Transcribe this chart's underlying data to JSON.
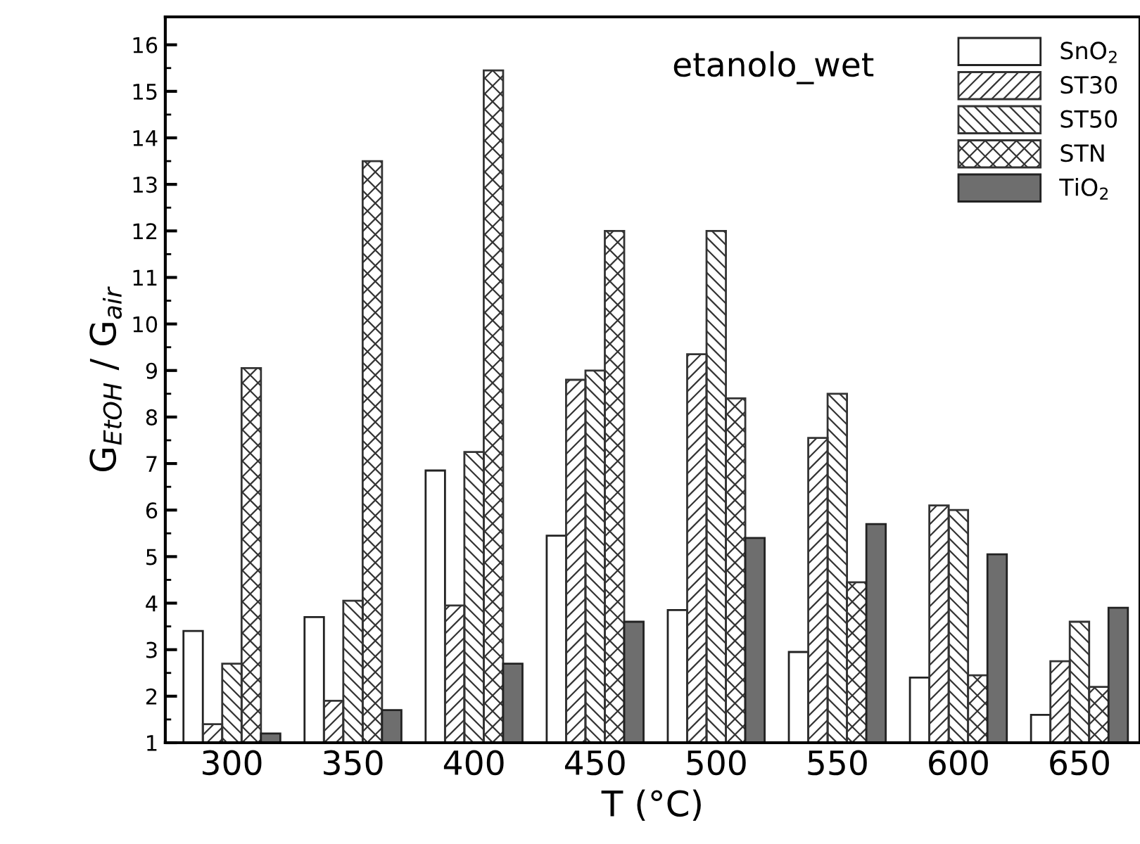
{
  "chart_data": {
    "type": "bar",
    "xlabel": "T (°C)",
    "ylabel": "G$_{EtOH}$ / G$_{air}$",
    "annotations": [
      "etanolo_wet"
    ],
    "categories": [
      "300",
      "350",
      "400",
      "450",
      "500",
      "550",
      "600",
      "650"
    ],
    "series": [
      {
        "name": "SnO$_{2}$",
        "color": "#ffffff",
        "values": [
          3.4,
          3.7,
          6.85,
          5.45,
          3.85,
          2.95,
          2.4,
          1.6
        ]
      },
      {
        "name": "ST30",
        "color": "#333333",
        "values": [
          1.4,
          1.9,
          3.95,
          8.8,
          9.35,
          7.55,
          6.1,
          2.75
        ]
      },
      {
        "name": "ST50",
        "color": "#333333",
        "values": [
          2.7,
          4.05,
          7.25,
          9.0,
          12.0,
          8.5,
          6.0,
          3.6
        ]
      },
      {
        "name": "STN",
        "color": "#333333",
        "values": [
          9.05,
          13.5,
          15.45,
          12.0,
          8.4,
          4.45,
          2.45,
          2.2
        ]
      },
      {
        "name": "TiO$_{2}$",
        "color": "#6e6e6e",
        "values": [
          1.2,
          1.7,
          2.7,
          3.6,
          5.4,
          5.7,
          5.05,
          3.9
        ]
      }
    ],
    "ylim": [
      1,
      16.6
    ],
    "yticks": [
      1,
      2,
      3,
      4,
      5,
      6,
      7,
      8,
      9,
      10,
      11,
      12,
      13,
      14,
      15,
      16
    ],
    "grid": false,
    "legend": "top right"
  }
}
